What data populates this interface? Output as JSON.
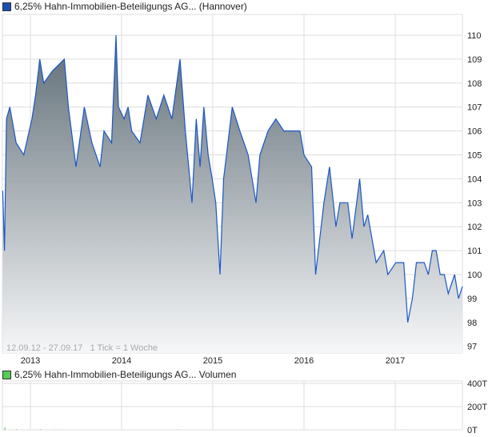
{
  "chart_data": [
    {
      "type": "area",
      "legend": "6,25% Hahn-Immobilien-Beteiligungs AG... (Hannover)",
      "info": "12.09.12 - 27.09.17   1 Tick = 1 Woche",
      "x_ticks": [
        "2013",
        "2014",
        "2015",
        "2016",
        "2017"
      ],
      "y_ticks": [
        "97",
        "98",
        "99",
        "100",
        "101",
        "102",
        "103",
        "104",
        "105",
        "106",
        "107",
        "108",
        "109",
        "110"
      ],
      "ylim": [
        96.7,
        110.9
      ],
      "xlim": [
        "2012-09-12",
        "2017-09-27"
      ],
      "grid": true,
      "colors": {
        "line": "#1a56c8",
        "fill_top": "#5f6d76",
        "fill_bottom": "#f6f7f8",
        "legend": "#1a4fb4"
      },
      "points": [
        [
          "2012-09-12",
          103.5
        ],
        [
          "2012-09-19",
          101
        ],
        [
          "2012-09-27",
          106.5
        ],
        [
          "2012-10-10",
          107
        ],
        [
          "2012-11-05",
          105.5
        ],
        [
          "2012-12-05",
          105
        ],
        [
          "2013-01-07",
          106.5
        ],
        [
          "2013-01-22",
          107.5
        ],
        [
          "2013-02-08",
          109
        ],
        [
          "2013-02-24",
          108
        ],
        [
          "2013-03-28",
          108.5
        ],
        [
          "2013-05-15",
          109
        ],
        [
          "2013-06-01",
          107
        ],
        [
          "2013-07-01",
          104.5
        ],
        [
          "2013-08-04",
          107
        ],
        [
          "2013-09-04",
          105.5
        ],
        [
          "2013-10-06",
          104.5
        ],
        [
          "2013-10-22",
          106
        ],
        [
          "2013-11-22",
          105.5
        ],
        [
          "2013-12-09",
          110
        ],
        [
          "2013-12-19",
          107
        ],
        [
          "2014-01-11",
          106.5
        ],
        [
          "2014-01-27",
          107
        ],
        [
          "2014-02-11",
          106
        ],
        [
          "2014-03-14",
          105.5
        ],
        [
          "2014-04-15",
          107.5
        ],
        [
          "2014-05-18",
          106.5
        ],
        [
          "2014-06-18",
          107.5
        ],
        [
          "2014-07-20",
          106.5
        ],
        [
          "2014-08-22",
          109
        ],
        [
          "2014-09-13",
          106
        ],
        [
          "2014-10-09",
          103
        ],
        [
          "2014-10-26",
          106.5
        ],
        [
          "2014-11-11",
          104.5
        ],
        [
          "2014-11-26",
          107
        ],
        [
          "2014-12-13",
          105
        ],
        [
          "2014-12-29",
          104
        ],
        [
          "2015-01-13",
          103
        ],
        [
          "2015-01-30",
          100
        ],
        [
          "2015-02-14",
          104
        ],
        [
          "2015-03-18",
          107
        ],
        [
          "2015-04-18",
          106
        ],
        [
          "2015-05-21",
          105
        ],
        [
          "2015-06-22",
          103
        ],
        [
          "2015-07-07",
          105
        ],
        [
          "2015-08-09",
          106
        ],
        [
          "2015-09-10",
          106.5
        ],
        [
          "2015-10-12",
          106
        ],
        [
          "2015-11-13",
          106
        ],
        [
          "2015-12-15",
          106
        ],
        [
          "2016-01-01",
          105
        ],
        [
          "2016-02-01",
          104.5
        ],
        [
          "2016-02-17",
          100
        ],
        [
          "2016-03-20",
          103
        ],
        [
          "2016-04-12",
          104.5
        ],
        [
          "2016-05-07",
          102
        ],
        [
          "2016-05-23",
          103
        ],
        [
          "2016-06-24",
          103
        ],
        [
          "2016-07-11",
          101.5
        ],
        [
          "2016-08-11",
          104
        ],
        [
          "2016-08-28",
          102
        ],
        [
          "2016-09-13",
          102.5
        ],
        [
          "2016-10-16",
          100.5
        ],
        [
          "2016-11-16",
          101
        ],
        [
          "2016-12-02",
          100
        ],
        [
          "2017-01-04",
          100.5
        ],
        [
          "2017-02-05",
          100.5
        ],
        [
          "2017-02-21",
          98
        ],
        [
          "2017-03-09",
          99
        ],
        [
          "2017-03-25",
          100.5
        ],
        [
          "2017-04-10",
          100.5
        ],
        [
          "2017-04-26",
          100.5
        ],
        [
          "2017-05-12",
          100
        ],
        [
          "2017-05-28",
          101
        ],
        [
          "2017-06-13",
          101
        ],
        [
          "2017-06-29",
          100
        ],
        [
          "2017-07-15",
          100
        ],
        [
          "2017-07-31",
          99.2
        ],
        [
          "2017-08-26",
          100
        ],
        [
          "2017-09-11",
          99
        ],
        [
          "2017-09-27",
          99.5
        ]
      ]
    },
    {
      "type": "bar",
      "legend": "6,25% Hahn-Immobilien-Beteiligungs AG... Volumen",
      "y_ticks": [
        "0T",
        "200T",
        "400T"
      ],
      "ylim": [
        0,
        400
      ],
      "colors": {
        "up": "#44bb44",
        "down": "#dd3333",
        "legend": "#55cc55"
      },
      "bars": [
        [
          "2012-09-19",
          20,
          "up"
        ],
        [
          "2012-11-05",
          5,
          "up"
        ],
        [
          "2013-02-10",
          5,
          "up"
        ],
        [
          "2013-04-10",
          2,
          "down"
        ],
        [
          "2014-08-10",
          2,
          "down"
        ],
        [
          "2017-01-30",
          2,
          "down"
        ]
      ]
    }
  ]
}
